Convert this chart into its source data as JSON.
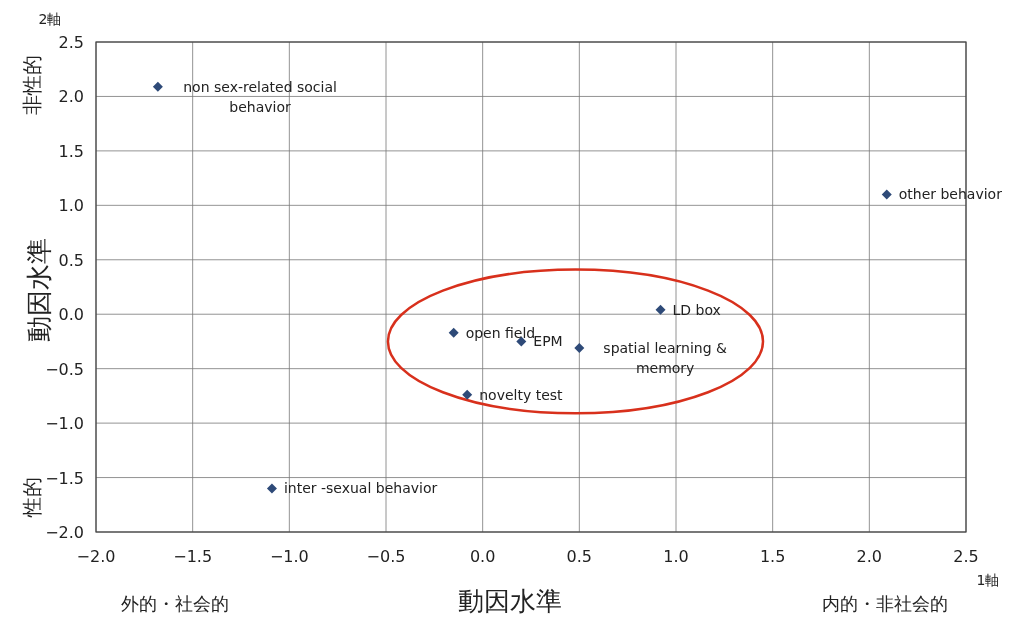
{
  "chart_data": {
    "type": "scatter",
    "xlabel": "動因水準",
    "ylabel": "動因水準",
    "x": [
      -1.68,
      2.09,
      0.92,
      -0.15,
      0.2,
      0.5,
      -0.08,
      -1.09
    ],
    "values": [
      2.09,
      1.1,
      0.04,
      -0.17,
      -0.25,
      -0.31,
      -0.74,
      -1.6
    ],
    "color": "#2e4a78",
    "marker": "diamond",
    "grid": true,
    "xlim": [
      -2.0,
      2.5
    ],
    "ylim": [
      -2.0,
      2.5
    ],
    "xticks": [
      {
        "value": -2.0,
        "label": "−2.0"
      },
      {
        "value": -1.5,
        "label": "−1.5"
      },
      {
        "value": -1.0,
        "label": "−1.0"
      },
      {
        "value": -0.5,
        "label": "−0.5"
      },
      {
        "value": 0.0,
        "label": "0.0"
      },
      {
        "value": 0.5,
        "label": "0.5"
      },
      {
        "value": 1.0,
        "label": "1.0"
      },
      {
        "value": 1.5,
        "label": "1.5"
      },
      {
        "value": 2.0,
        "label": "2.0"
      },
      {
        "value": 2.5,
        "label": "2.5"
      }
    ],
    "yticks": [
      {
        "value": -2.0,
        "label": "−2.0"
      },
      {
        "value": -1.5,
        "label": "−1.5"
      },
      {
        "value": -1.0,
        "label": "−1.0"
      },
      {
        "value": -0.5,
        "label": "−0.5"
      },
      {
        "value": 0.0,
        "label": "0.0"
      },
      {
        "value": 0.5,
        "label": "0.5"
      },
      {
        "value": 1.0,
        "label": "1.0"
      },
      {
        "value": 1.5,
        "label": "1.5"
      },
      {
        "value": 2.0,
        "label": "2.0"
      },
      {
        "value": 2.5,
        "label": "2.5"
      }
    ],
    "annotations": [
      {
        "text": "non sex-related social behavior",
        "x": -1.68,
        "y": 2.09
      },
      {
        "text": "other behavior",
        "x": 2.09,
        "y": 1.1
      },
      {
        "text": "LD box",
        "x": 0.92,
        "y": 0.04
      },
      {
        "text": "open field",
        "x": -0.15,
        "y": -0.17
      },
      {
        "text": "EPM",
        "x": 0.2,
        "y": -0.25
      },
      {
        "text": "spatial learning & memory",
        "x": 0.5,
        "y": -0.31
      },
      {
        "text": "novelty test",
        "x": -0.08,
        "y": -0.74
      },
      {
        "text": "inter -sexual behavior",
        "x": -1.09,
        "y": -1.6
      },
      "2軸",
      "1軸",
      "非性的",
      "性的",
      "外的・社会的",
      "内的・非社会的"
    ]
  }
}
